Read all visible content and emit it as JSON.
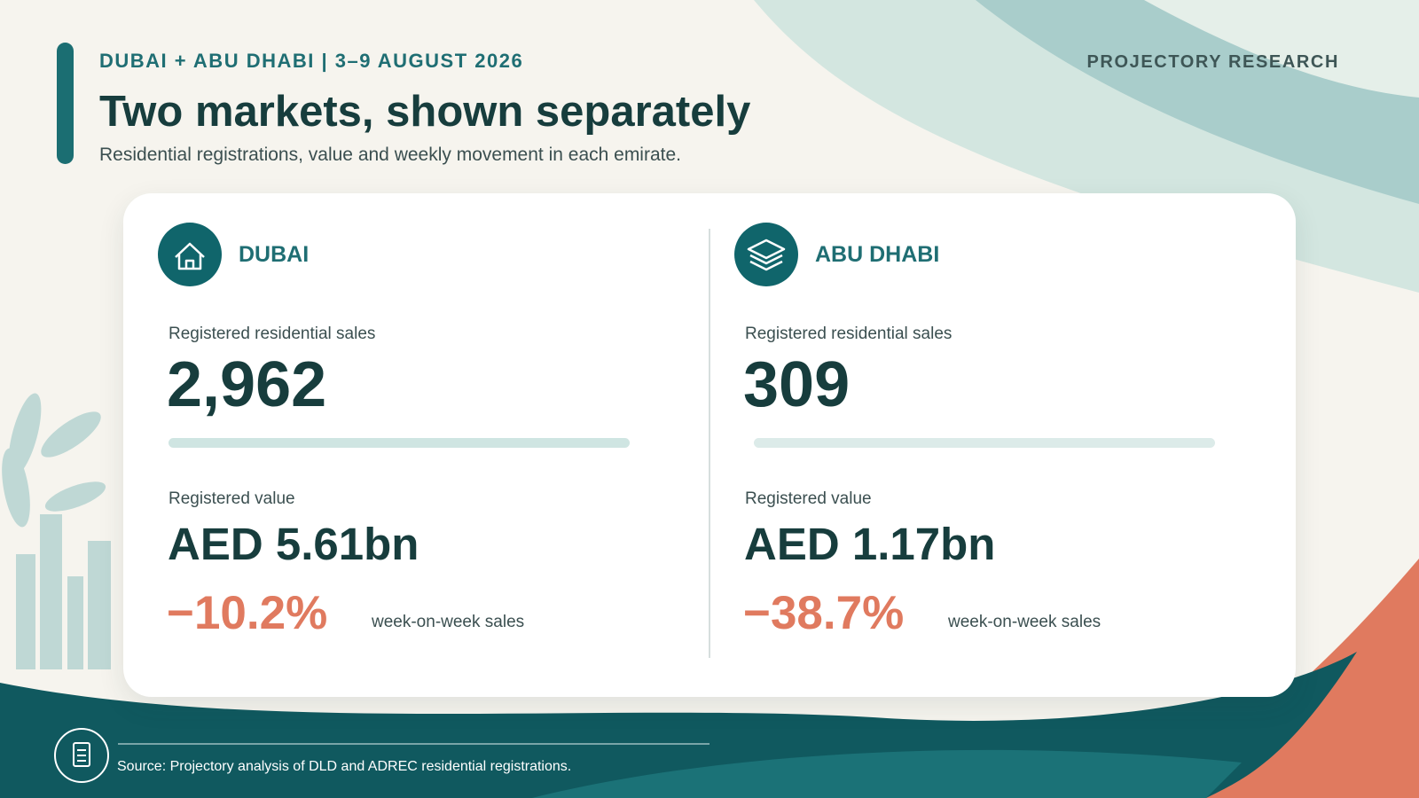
{
  "header": {
    "kicker": "DUBAI + ABU DHABI | 3–9 AUGUST 2026",
    "title": "Two markets, shown separately",
    "subtitle": "Residential registrations, value and weekly movement in each emirate.",
    "brand": "PROJECTORY RESEARCH"
  },
  "markets": [
    {
      "name": "DUBAI",
      "sales_label": "Registered residential sales",
      "sales": "2,962",
      "value_label": "Registered value",
      "value": "AED 5.61bn",
      "change": "−10.2%",
      "change_label": "week-on-week sales"
    },
    {
      "name": "ABU DHABI",
      "sales_label": "Registered residential sales",
      "sales": "309",
      "value_label": "Registered value",
      "value": "AED 1.17bn",
      "change": "−38.7%",
      "change_label": "week-on-week sales"
    }
  ],
  "footer": {
    "source": "Source: Projectory analysis of DLD and ADREC residential registrations."
  }
}
